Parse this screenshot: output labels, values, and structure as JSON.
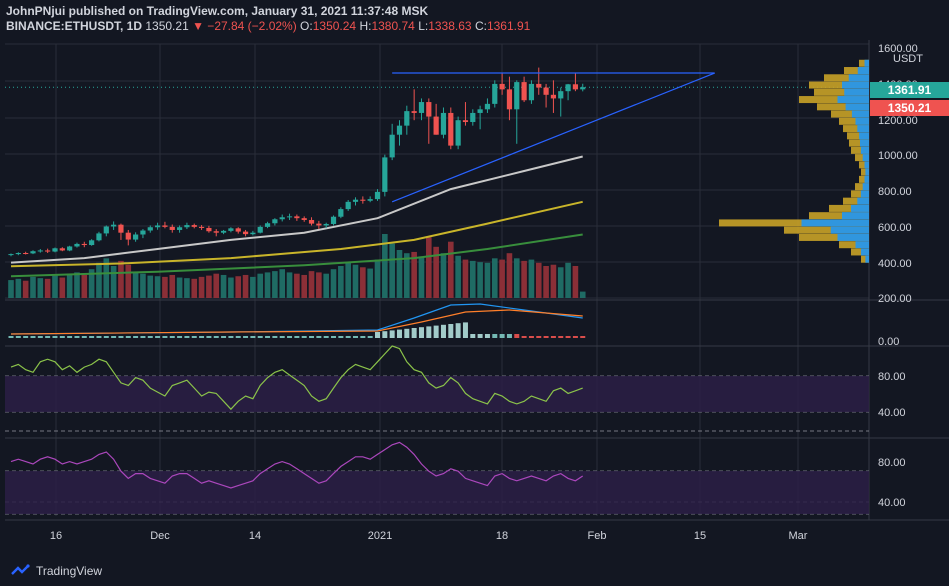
{
  "header": {
    "line1": "JohnPNjui published on TradingView.com, January 31, 2021 11:37:48 MSK",
    "symbol": "BINANCE:ETHUSDT, 1D",
    "last": "1350.21",
    "change": "▼ −27.84 (−2.02%)",
    "o_label": "O:",
    "o_val": "1350.24",
    "h_label": "H:",
    "h_val": "1380.74",
    "l_label": "L:",
    "l_val": "1338.63",
    "c_label": "C:",
    "c_val": "1361.91"
  },
  "price_axis": {
    "currency": "USDT",
    "ticks": [
      "1600.00",
      "1400.00",
      "1200.00",
      "1000.00",
      "800.00",
      "600.00",
      "400.00",
      "200.00"
    ],
    "badge_current": "1361.91",
    "badge_last": "1350.21",
    "badge_current_color": "#26a69a",
    "badge_last_color": "#ef5350"
  },
  "indicator_axes": {
    "macd": [
      "0.00"
    ],
    "rsi1": [
      "80.00",
      "40.00"
    ],
    "rsi2": [
      "80.00",
      "40.00"
    ]
  },
  "time_axis": [
    "16",
    "Dec",
    "14",
    "2021",
    "18",
    "Feb",
    "15",
    "Mar"
  ],
  "footer": {
    "brand": "TradingView"
  },
  "colors": {
    "up": "#26a69a",
    "down": "#ef5350",
    "background": "#131722",
    "ma_fast": "#c8c8c8",
    "ma_mid": "#c9b52a",
    "ma_slow": "#388e3c",
    "triangle": "#2962ff",
    "volume_profile_blue": "#2196f3",
    "volume_profile_gold": "#c9a227",
    "rsi1_line": "#8bc34a",
    "rsi2_line": "#ab47bc",
    "rsi_band": "#2b1f45"
  },
  "chart_data": {
    "type": "candlestick",
    "title": "BINANCE:ETHUSDT, 1D",
    "ylabel": "USDT",
    "ylim": [
      200,
      1600
    ],
    "x_range": [
      "2020-11-09",
      "2021-03-10"
    ],
    "start_date": "2020-11-09",
    "candles": [
      [
        440,
        445,
        430,
        442
      ],
      [
        442,
        452,
        436,
        448
      ],
      [
        448,
        455,
        440,
        446
      ],
      [
        446,
        463,
        442,
        458
      ],
      [
        458,
        470,
        450,
        462
      ],
      [
        462,
        472,
        448,
        456
      ],
      [
        456,
        478,
        452,
        474
      ],
      [
        474,
        480,
        458,
        462
      ],
      [
        462,
        488,
        458,
        484
      ],
      [
        484,
        505,
        478,
        498
      ],
      [
        498,
        510,
        480,
        492
      ],
      [
        492,
        524,
        488,
        518
      ],
      [
        518,
        565,
        512,
        556
      ],
      [
        556,
        600,
        540,
        594
      ],
      [
        594,
        622,
        575,
        604
      ],
      [
        604,
        610,
        520,
        560
      ],
      [
        560,
        575,
        490,
        522
      ],
      [
        522,
        562,
        510,
        550
      ],
      [
        550,
        580,
        530,
        572
      ],
      [
        572,
        600,
        560,
        590
      ],
      [
        590,
        615,
        576,
        600
      ],
      [
        600,
        620,
        584,
        592
      ],
      [
        592,
        605,
        560,
        575
      ],
      [
        575,
        600,
        560,
        590
      ],
      [
        590,
        615,
        580,
        602
      ],
      [
        602,
        610,
        584,
        592
      ],
      [
        592,
        602,
        575,
        586
      ],
      [
        586,
        598,
        560,
        568
      ],
      [
        568,
        580,
        540,
        560
      ],
      [
        560,
        575,
        552,
        570
      ],
      [
        570,
        590,
        562,
        584
      ],
      [
        584,
        590,
        555,
        566
      ],
      [
        566,
        575,
        540,
        552
      ],
      [
        552,
        570,
        545,
        560
      ],
      [
        560,
        600,
        556,
        592
      ],
      [
        592,
        620,
        585,
        612
      ],
      [
        612,
        640,
        600,
        634
      ],
      [
        634,
        660,
        622,
        645
      ],
      [
        645,
        665,
        630,
        650
      ],
      [
        650,
        660,
        625,
        640
      ],
      [
        640,
        650,
        620,
        630
      ],
      [
        630,
        645,
        600,
        610
      ],
      [
        610,
        625,
        580,
        600
      ],
      [
        600,
        615,
        585,
        608
      ],
      [
        608,
        655,
        600,
        648
      ],
      [
        648,
        700,
        640,
        690
      ],
      [
        690,
        740,
        680,
        730
      ],
      [
        730,
        755,
        710,
        742
      ],
      [
        742,
        760,
        720,
        736
      ],
      [
        736,
        760,
        728,
        745
      ],
      [
        745,
        800,
        735,
        785
      ],
      [
        785,
        990,
        760,
        975
      ],
      [
        975,
        1160,
        960,
        1100
      ],
      [
        1100,
        1180,
        1040,
        1150
      ],
      [
        1150,
        1260,
        1100,
        1230
      ],
      [
        1230,
        1350,
        1180,
        1220
      ],
      [
        1220,
        1300,
        1180,
        1280
      ],
      [
        1280,
        1300,
        1050,
        1200
      ],
      [
        1200,
        1270,
        1100,
        1100
      ],
      [
        1100,
        1250,
        1080,
        1220
      ],
      [
        1220,
        1250,
        1020,
        1040
      ],
      [
        1040,
        1200,
        1020,
        1180
      ],
      [
        1180,
        1280,
        1150,
        1170
      ],
      [
        1170,
        1240,
        1150,
        1220
      ],
      [
        1220,
        1260,
        1130,
        1240
      ],
      [
        1240,
        1300,
        1220,
        1270
      ],
      [
        1270,
        1400,
        1250,
        1380
      ],
      [
        1380,
        1440,
        1320,
        1350
      ],
      [
        1350,
        1420,
        1180,
        1240
      ],
      [
        1240,
        1400,
        1050,
        1390
      ],
      [
        1390,
        1420,
        1280,
        1290
      ],
      [
        1290,
        1400,
        1270,
        1380
      ],
      [
        1380,
        1470,
        1320,
        1360
      ],
      [
        1360,
        1380,
        1250,
        1320
      ],
      [
        1320,
        1400,
        1220,
        1300
      ],
      [
        1300,
        1360,
        1200,
        1340
      ],
      [
        1340,
        1380,
        1290,
        1378
      ],
      [
        1378,
        1440,
        1340,
        1350
      ],
      [
        1350,
        1381,
        1339,
        1362
      ]
    ],
    "volume_relative": [
      0.28,
      0.3,
      0.27,
      0.33,
      0.31,
      0.3,
      0.35,
      0.32,
      0.38,
      0.4,
      0.36,
      0.45,
      0.55,
      0.62,
      0.5,
      0.58,
      0.52,
      0.4,
      0.38,
      0.35,
      0.34,
      0.33,
      0.36,
      0.32,
      0.31,
      0.3,
      0.33,
      0.35,
      0.38,
      0.36,
      0.32,
      0.34,
      0.36,
      0.33,
      0.38,
      0.4,
      0.42,
      0.45,
      0.4,
      0.38,
      0.36,
      0.42,
      0.4,
      0.38,
      0.45,
      0.5,
      0.55,
      0.52,
      0.48,
      0.46,
      0.6,
      1.0,
      0.85,
      0.75,
      0.7,
      0.72,
      0.65,
      0.95,
      0.8,
      0.7,
      0.88,
      0.66,
      0.6,
      0.58,
      0.56,
      0.55,
      0.62,
      0.6,
      0.7,
      0.62,
      0.58,
      0.6,
      0.55,
      0.5,
      0.52,
      0.48,
      0.55,
      0.5,
      0.1
    ],
    "ma_series": [
      {
        "period_role": "fast",
        "points": [
          [
            0,
            395
          ],
          [
            10,
            420
          ],
          [
            20,
            470
          ],
          [
            30,
            520
          ],
          [
            40,
            560
          ],
          [
            50,
            640
          ],
          [
            60,
            800
          ],
          [
            70,
            900
          ],
          [
            78,
            980
          ]
        ]
      },
      {
        "period_role": "mid",
        "points": [
          [
            0,
            375
          ],
          [
            15,
            390
          ],
          [
            30,
            420
          ],
          [
            45,
            470
          ],
          [
            55,
            520
          ],
          [
            65,
            610
          ],
          [
            78,
            730
          ]
        ]
      },
      {
        "period_role": "slow",
        "points": [
          [
            0,
            320
          ],
          [
            20,
            345
          ],
          [
            40,
            380
          ],
          [
            55,
            420
          ],
          [
            65,
            470
          ],
          [
            78,
            550
          ]
        ]
      }
    ],
    "triangle": {
      "top_price": 1440,
      "top_start_idx": 52,
      "apex_idx": 96,
      "bottom_start_idx": 52,
      "bottom_start_price": 730
    },
    "rsi1_points": [
      74,
      76,
      72,
      70,
      78,
      80,
      78,
      72,
      75,
      70,
      74,
      76,
      80,
      78,
      70,
      62,
      60,
      66,
      64,
      58,
      55,
      52,
      60,
      62,
      64,
      58,
      52,
      55,
      54,
      48,
      42,
      48,
      52,
      50,
      60,
      66,
      70,
      72,
      68,
      64,
      60,
      52,
      48,
      50,
      58,
      66,
      72,
      76,
      74,
      72,
      78,
      84,
      90,
      88,
      78,
      72,
      70,
      62,
      58,
      60,
      66,
      62,
      54,
      50,
      48,
      46,
      54,
      52,
      48,
      46,
      48,
      52,
      50,
      48,
      56,
      58,
      54,
      56,
      58
    ],
    "rsi2_points": [
      72,
      74,
      72,
      70,
      74,
      76,
      74,
      70,
      72,
      70,
      72,
      74,
      78,
      80,
      74,
      64,
      58,
      62,
      62,
      58,
      56,
      54,
      60,
      62,
      62,
      58,
      54,
      56,
      54,
      52,
      50,
      52,
      54,
      56,
      62,
      66,
      70,
      72,
      70,
      66,
      62,
      58,
      54,
      56,
      62,
      68,
      72,
      76,
      76,
      74,
      78,
      82,
      86,
      88,
      84,
      78,
      70,
      64,
      60,
      62,
      66,
      64,
      58,
      56,
      54,
      52,
      60,
      62,
      58,
      56,
      58,
      60,
      58,
      56,
      60,
      62,
      58,
      56,
      60
    ]
  }
}
